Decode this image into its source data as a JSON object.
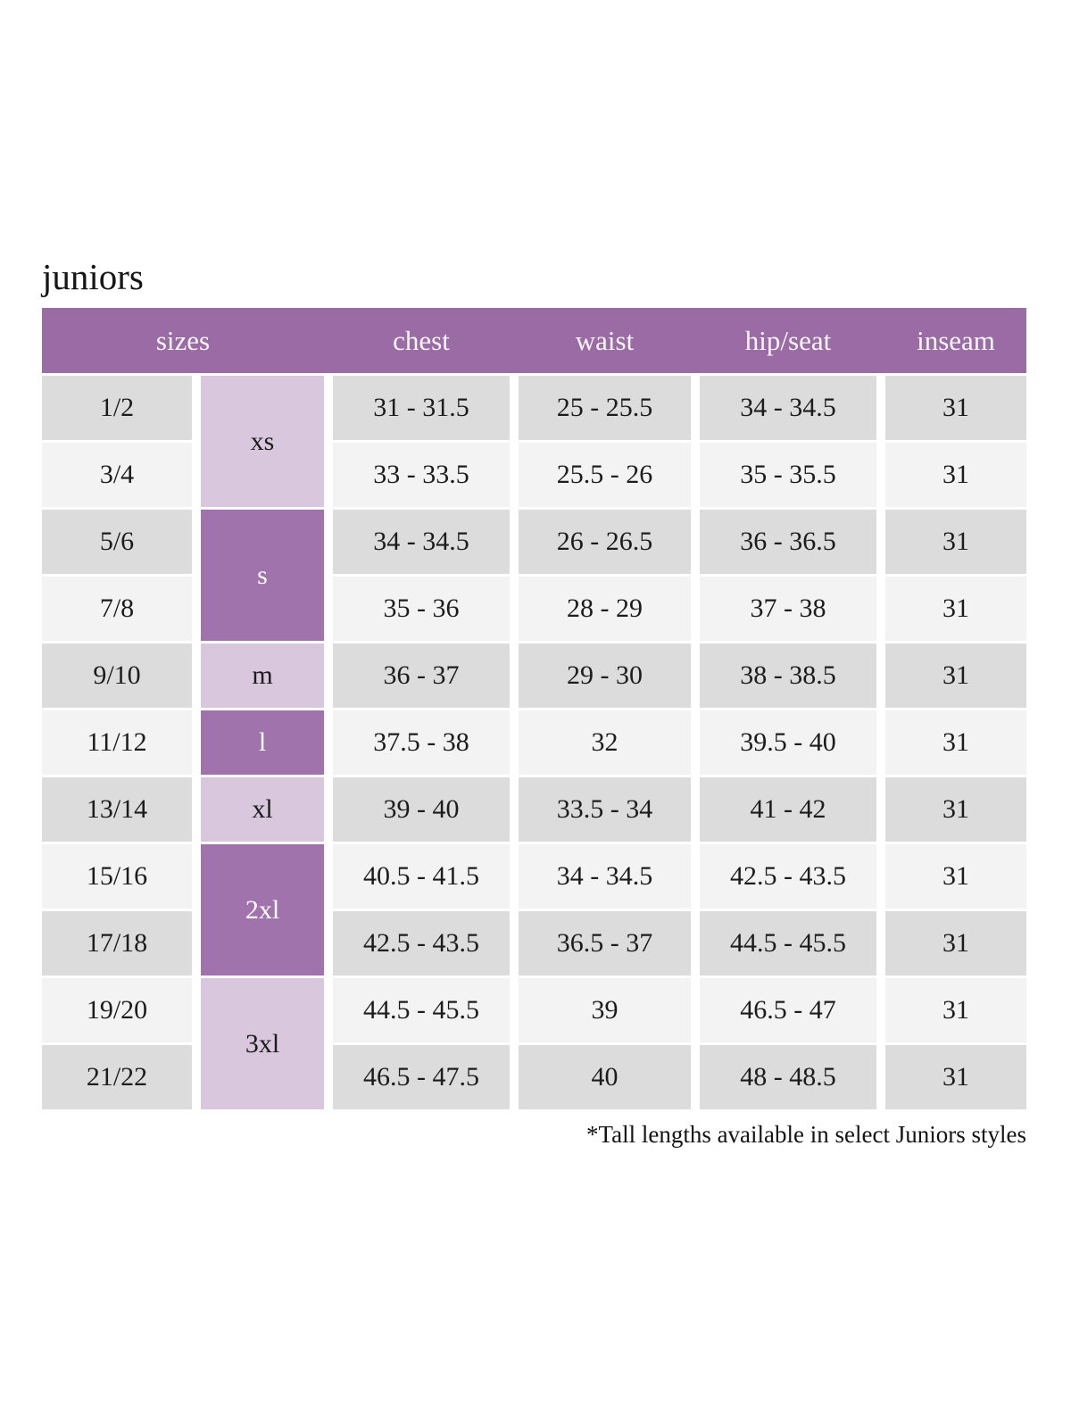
{
  "page": {
    "title": "juniors",
    "footnote": "*Tall lengths available in select Juniors styles"
  },
  "colors": {
    "header_bg": "#9a6ba4",
    "dark_cell_bg": "#a173ac",
    "light_cell_bg": "#d8c7dd",
    "row_gray": "#dcdcdc",
    "row_light": "#f3f3f3",
    "header_text": "#faf7fb",
    "body_text": "#1c1c1c",
    "page_bg": "#ffffff"
  },
  "table": {
    "headers": {
      "sizes": "sizes",
      "chest": "chest",
      "waist": "waist",
      "hip_seat": "hip/seat",
      "inseam": "inseam"
    },
    "letter_sizes": [
      {
        "label": "xs",
        "rows_spanned": 2,
        "shade": "light"
      },
      {
        "label": "s",
        "rows_spanned": 2,
        "shade": "dark"
      },
      {
        "label": "m",
        "rows_spanned": 1,
        "shade": "light"
      },
      {
        "label": "l",
        "rows_spanned": 1,
        "shade": "dark"
      },
      {
        "label": "xl",
        "rows_spanned": 1,
        "shade": "light"
      },
      {
        "label": "2xl",
        "rows_spanned": 2,
        "shade": "dark"
      },
      {
        "label": "3xl",
        "rows_spanned": 2,
        "shade": "light"
      }
    ],
    "rows": [
      {
        "size": "1/2",
        "chest": "31 - 31.5",
        "waist": "25 - 25.5",
        "hip_seat": "34 - 34.5",
        "inseam": "31",
        "shade": "gray"
      },
      {
        "size": "3/4",
        "chest": "33 - 33.5",
        "waist": "25.5 - 26",
        "hip_seat": "35 - 35.5",
        "inseam": "31",
        "shade": "light"
      },
      {
        "size": "5/6",
        "chest": "34 - 34.5",
        "waist": "26 - 26.5",
        "hip_seat": "36 - 36.5",
        "inseam": "31",
        "shade": "gray"
      },
      {
        "size": "7/8",
        "chest": "35 - 36",
        "waist": "28 - 29",
        "hip_seat": "37 - 38",
        "inseam": "31",
        "shade": "light"
      },
      {
        "size": "9/10",
        "chest": "36 - 37",
        "waist": "29 - 30",
        "hip_seat": "38 - 38.5",
        "inseam": "31",
        "shade": "gray"
      },
      {
        "size": "11/12",
        "chest": "37.5 - 38",
        "waist": "32",
        "hip_seat": "39.5 - 40",
        "inseam": "31",
        "shade": "light"
      },
      {
        "size": "13/14",
        "chest": "39 - 40",
        "waist": "33.5 - 34",
        "hip_seat": "41 - 42",
        "inseam": "31",
        "shade": "gray"
      },
      {
        "size": "15/16",
        "chest": "40.5 - 41.5",
        "waist": "34 - 34.5",
        "hip_seat": "42.5 - 43.5",
        "inseam": "31",
        "shade": "light"
      },
      {
        "size": "17/18",
        "chest": "42.5 - 43.5",
        "waist": "36.5 - 37",
        "hip_seat": "44.5 - 45.5",
        "inseam": "31",
        "shade": "gray"
      },
      {
        "size": "19/20",
        "chest": "44.5 - 45.5",
        "waist": "39",
        "hip_seat": "46.5 - 47",
        "inseam": "31",
        "shade": "light"
      },
      {
        "size": "21/22",
        "chest": "46.5 - 47.5",
        "waist": "40",
        "hip_seat": "48 - 48.5",
        "inseam": "31",
        "shade": "gray"
      }
    ]
  }
}
